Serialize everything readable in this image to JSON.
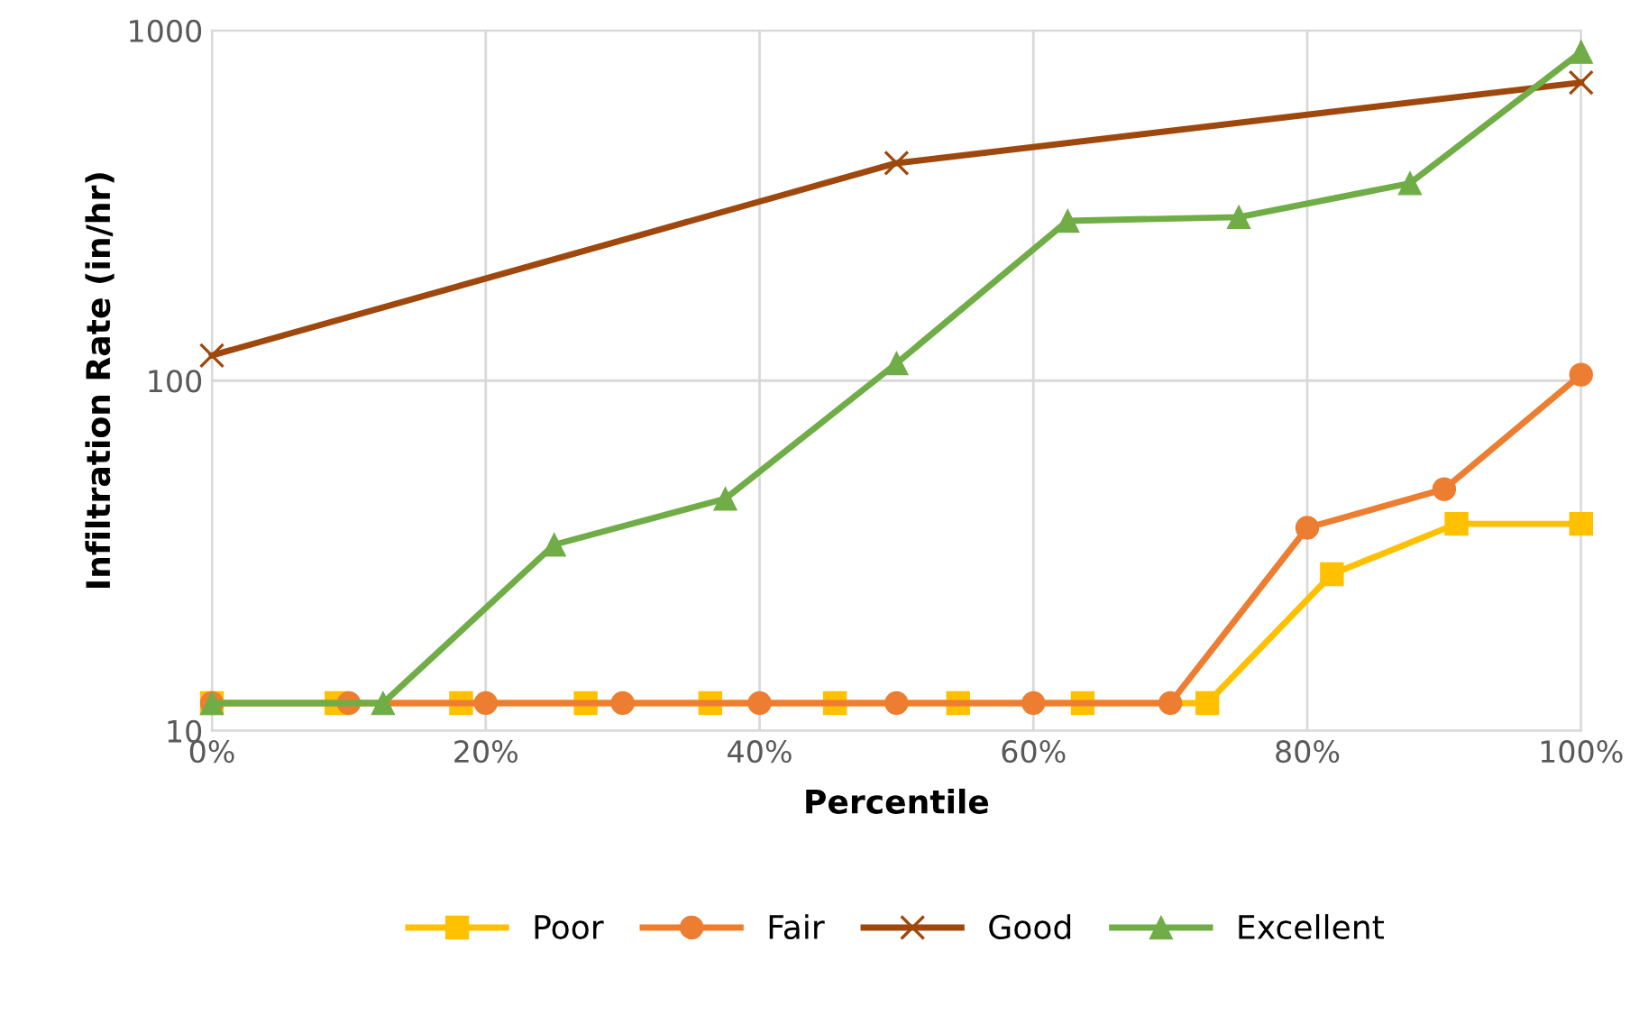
{
  "chart_data": {
    "type": "line",
    "xlabel": "Percentile",
    "ylabel": "Infiltration Rate (in/hr)",
    "log": "y",
    "xlim": [
      0,
      100
    ],
    "ylim": [
      10,
      1000
    ],
    "xticks": [
      {
        "value": 0,
        "label": "0%"
      },
      {
        "value": 20,
        "label": "20%"
      },
      {
        "value": 40,
        "label": "40%"
      },
      {
        "value": 60,
        "label": "60%"
      },
      {
        "value": 80,
        "label": "80%"
      },
      {
        "value": 100,
        "label": "100%"
      }
    ],
    "yticks": [
      10,
      100,
      1000
    ],
    "grid": true,
    "legend": "bottom",
    "line_style": "solid",
    "series": [
      {
        "name": "Poor",
        "color": "#ffc000",
        "marker": "square",
        "x": [
          0,
          9.1,
          18.2,
          27.3,
          36.4,
          45.5,
          54.5,
          63.6,
          72.7,
          81.8,
          90.9,
          100
        ],
        "values": [
          12,
          12,
          12,
          12,
          12,
          12,
          12,
          12,
          12,
          28,
          39,
          39
        ]
      },
      {
        "name": "Fair",
        "color": "#ed7d31",
        "marker": "circle",
        "x": [
          0,
          10,
          20,
          30,
          40,
          50,
          60,
          70,
          80,
          90,
          100
        ],
        "values": [
          12,
          12,
          12,
          12,
          12,
          12,
          12,
          12,
          38,
          49,
          104
        ]
      },
      {
        "name": "Good",
        "color": "#9e480e",
        "marker": "cross",
        "x": [
          0,
          50,
          100
        ],
        "values": [
          118,
          418,
          710
        ]
      },
      {
        "name": "Excellent",
        "color": "#70ad47",
        "marker": "triangle",
        "x": [
          0,
          12.5,
          25,
          37.5,
          50,
          62.5,
          75,
          87.5,
          100
        ],
        "values": [
          12,
          12,
          34,
          46,
          112,
          286,
          293,
          366,
          868
        ]
      }
    ]
  }
}
